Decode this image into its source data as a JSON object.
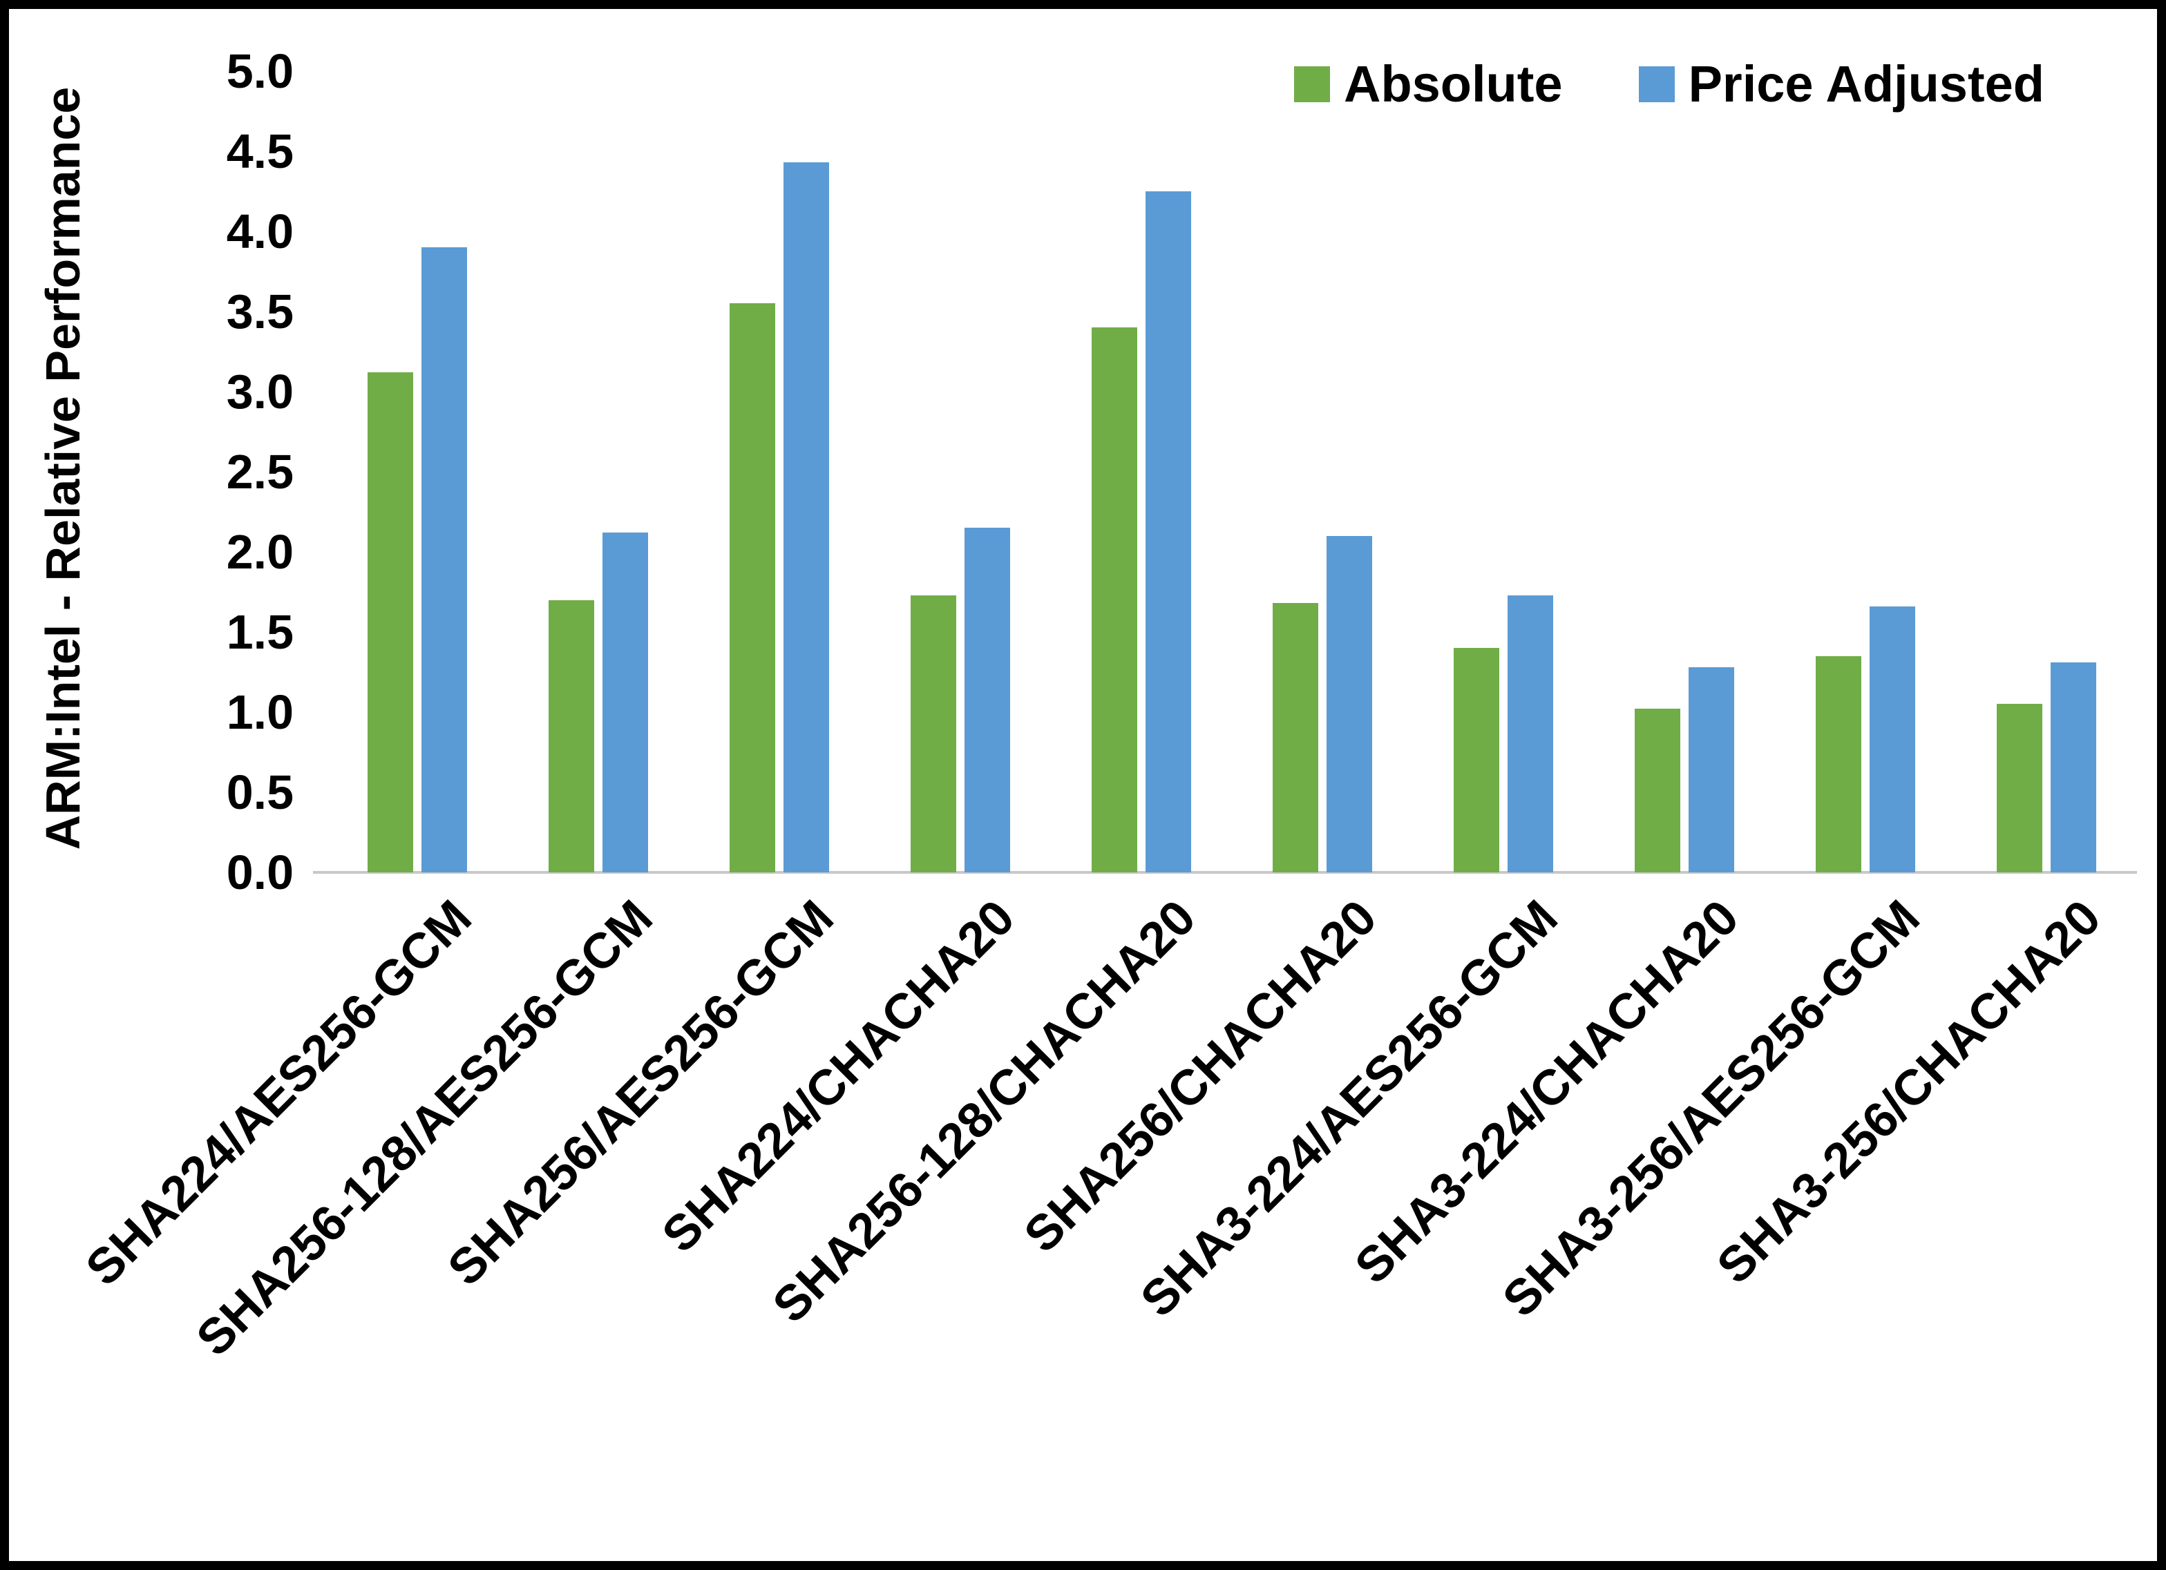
{
  "chart_data": {
    "type": "bar",
    "title": "",
    "xlabel": "",
    "ylabel": "ARM:Intel - Relative Performance",
    "ylim": [
      0,
      5
    ],
    "ytick_step": 0.5,
    "grid": false,
    "legend_position": "top-right",
    "categories": [
      "SHA224/AES256-GCM",
      "SHA256-128/AES256-GCM",
      "SHA256/AES256-GCM",
      "SHA224/CHACHA20",
      "SHA256-128/CHACHA20",
      "SHA256/CHACHA20",
      "SHA3-224/AES256-GCM",
      "SHA3-224/CHACHA20",
      "SHA3-256/AES256-GCM",
      "SHA3-256/CHACHA20"
    ],
    "series": [
      {
        "name": "Absolute",
        "color": "#70AD47",
        "values": [
          3.12,
          1.7,
          3.55,
          1.73,
          3.4,
          1.68,
          1.4,
          1.02,
          1.35,
          1.05
        ]
      },
      {
        "name": "Price Adjusted",
        "color": "#5B9BD5",
        "values": [
          3.9,
          2.12,
          4.43,
          2.15,
          4.25,
          2.1,
          1.73,
          1.28,
          1.66,
          1.31
        ]
      }
    ]
  },
  "colors": {
    "frame_border": "#000000",
    "baseline": "#c8c8c8",
    "background": "#ffffff",
    "text": "#000000"
  }
}
